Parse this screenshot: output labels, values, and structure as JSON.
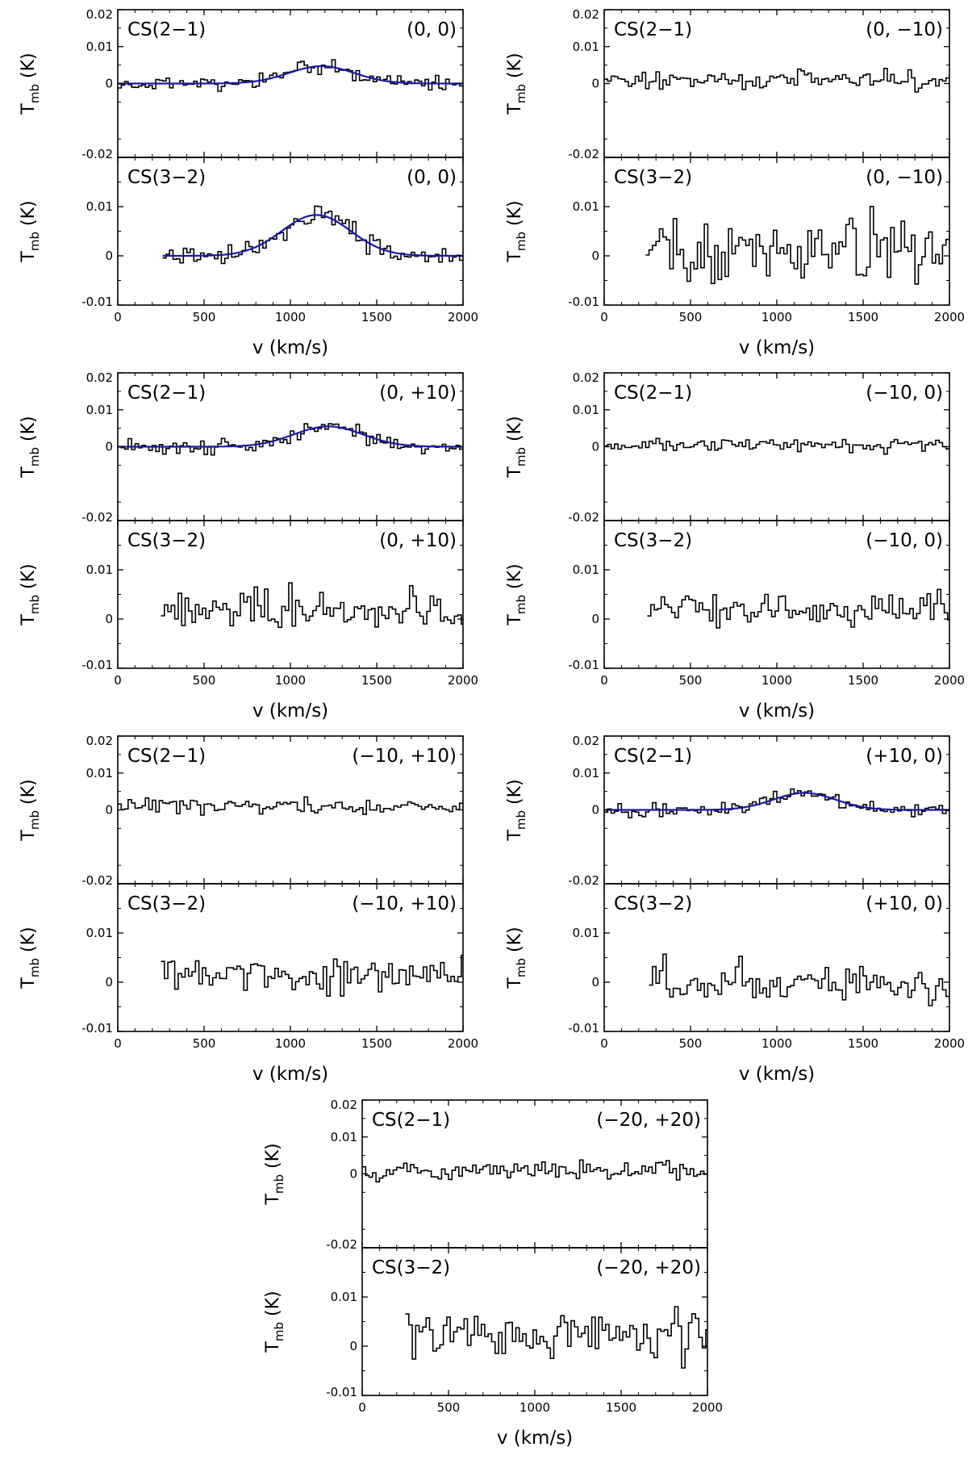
{
  "chart_data": {
    "type": "line",
    "layout": "7 stacked panel pairs: CS(2-1) above CS(3-2) at each map position (3 rows x 2 columns + 1 centered bottom pair)",
    "xlabel": "v (km/s)",
    "ylabel": "T_mb (K)",
    "ylabel_main": "T",
    "ylabel_sub": "mb",
    "ylabel_unit": "(K)",
    "xlim": [
      0,
      2000
    ],
    "xticks": [
      0,
      500,
      1000,
      1500,
      2000
    ],
    "ylim_top": [
      -0.02,
      0.02
    ],
    "yticks_top": [
      -0.02,
      0,
      0.01,
      0.02
    ],
    "yticklabels_top": [
      "-0.02",
      "0",
      "0.01",
      "0.02"
    ],
    "ylim_bottom": [
      -0.01,
      0.02
    ],
    "yticks_bottom": [
      -0.01,
      0,
      0.01
    ],
    "yticklabels_bottom": [
      "-0.01",
      "0",
      "0.01"
    ],
    "channel_width_kms": 20,
    "pairs": [
      {
        "position": "(0, 0)",
        "top": {
          "line": "CS(2−1)",
          "start": 0,
          "seed": 11,
          "noise": 0.0018,
          "fit": {
            "amp": 0.0047,
            "center": 1180,
            "sigma": 190
          }
        },
        "bottom": {
          "line": "CS(3−2)",
          "start": 260,
          "seed": 23,
          "noise": 0.002,
          "fit": {
            "amp": 0.0083,
            "center": 1150,
            "sigma": 200
          }
        }
      },
      {
        "position": "(0, −10)",
        "top": {
          "line": "CS(2−1)",
          "start": 0,
          "seed": 31,
          "noise": 0.0022,
          "offset": 0.001
        },
        "bottom": {
          "line": "CS(3−2)",
          "start": 240,
          "seed": 37,
          "noise": 0.0065,
          "offset": 0.001
        }
      },
      {
        "position": "(0, +10)",
        "top": {
          "line": "CS(2−1)",
          "start": 0,
          "seed": 41,
          "noise": 0.002,
          "fit": {
            "amp": 0.0055,
            "center": 1220,
            "sigma": 200
          }
        },
        "bottom": {
          "line": "CS(3−2)",
          "start": 250,
          "seed": 43,
          "noise": 0.004,
          "offset": 0.002
        }
      },
      {
        "position": "(−10, 0)",
        "top": {
          "line": "CS(2−1)",
          "start": 0,
          "seed": 47,
          "noise": 0.0016,
          "offset": 0.0005
        },
        "bottom": {
          "line": "CS(3−2)",
          "start": 250,
          "seed": 53,
          "noise": 0.0035,
          "offset": 0.002
        }
      },
      {
        "position": "(−10, +10)",
        "top": {
          "line": "CS(2−1)",
          "start": 0,
          "seed": 59,
          "noise": 0.0022,
          "offset": 0.001
        },
        "bottom": {
          "line": "CS(3−2)",
          "start": 250,
          "seed": 61,
          "noise": 0.0042,
          "offset": 0.001
        }
      },
      {
        "position": "(+10, 0)",
        "top": {
          "line": "CS(2−1)",
          "start": 0,
          "seed": 67,
          "noise": 0.002,
          "fit": {
            "amp": 0.0046,
            "center": 1160,
            "sigma": 180
          }
        },
        "bottom": {
          "line": "CS(3−2)",
          "start": 260,
          "seed": 71,
          "noise": 0.0038,
          "offset": 0.0
        }
      },
      {
        "position": "(−20, +20)",
        "top": {
          "line": "CS(2−1)",
          "start": 0,
          "seed": 73,
          "noise": 0.0026,
          "offset": 0.001
        },
        "bottom": {
          "line": "CS(3−2)",
          "start": 250,
          "seed": 79,
          "noise": 0.0045,
          "offset": 0.002
        }
      }
    ]
  },
  "colors": {
    "spectrum": "#000000",
    "fit": "#1a1aa6",
    "axes": "#000000",
    "background": "#ffffff"
  }
}
